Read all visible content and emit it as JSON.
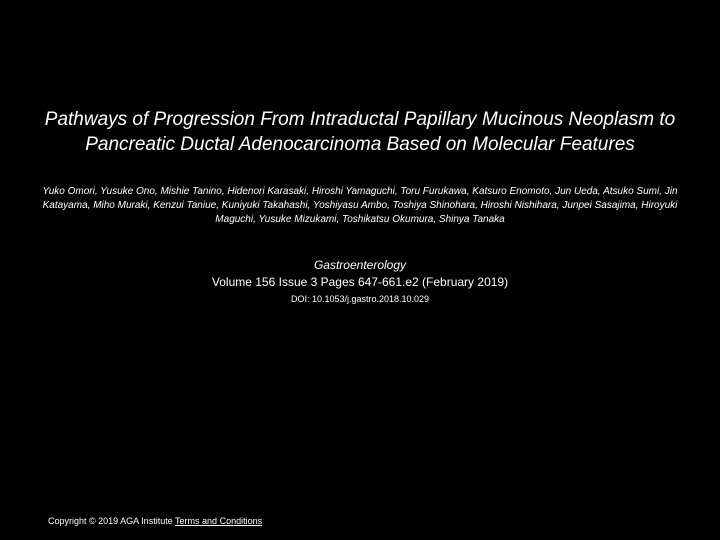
{
  "title": "Pathways of Progression From Intraductal Papillary Mucinous Neoplasm to Pancreatic Ductal Adenocarcinoma Based on Molecular Features",
  "authors": "Yuko Omori, Yusuke Ono, Mishie Tanino, Hidenori Karasaki, Hiroshi Yamaguchi, Toru Furukawa, Katsuro Enomoto, Jun Ueda, Atsuko Sumi, Jin Katayama, Miho Muraki, Kenzui Taniue, Kuniyuki Takahashi, Yoshiyasu Ambo, Toshiya Shinohara, Hiroshi Nishihara, Junpei Sasajima, Hiroyuki Maguchi, Yusuke Mizukami, Toshikatsu Okumura, Shinya Tanaka",
  "journal": "Gastroenterology",
  "citation": "Volume 156 Issue 3 Pages 647-661.e2 (February 2019)",
  "doi": "DOI: 10.1053/j.gastro.2018.10.029",
  "copyright_prefix": "Copyright © 2019 AGA Institute ",
  "terms_label": "Terms and Conditions",
  "colors": {
    "background": "#000000",
    "text": "#ffffff"
  },
  "typography": {
    "title_fontsize": 19,
    "title_style": "italic",
    "authors_fontsize": 10,
    "authors_style": "italic",
    "journal_fontsize": 12,
    "doi_fontsize": 9,
    "copyright_fontsize": 9
  }
}
